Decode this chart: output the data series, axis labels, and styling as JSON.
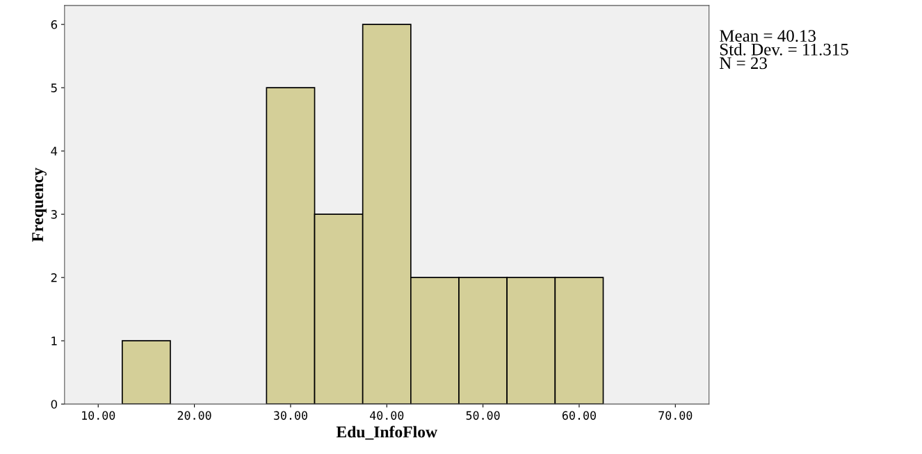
{
  "chart_data": {
    "type": "histogram",
    "xlabel": "Edu_InfoFlow",
    "ylabel": "Frequency",
    "bins": [
      12.5,
      17.5,
      22.5,
      27.5,
      32.5,
      37.5,
      42.5,
      47.5,
      52.5,
      57.5,
      62.5
    ],
    "values": [
      1,
      0,
      0,
      5,
      3,
      6,
      2,
      2,
      2,
      2
    ],
    "color": "#d4cf98",
    "xlim": [
      6.5,
      73.5
    ],
    "xticks": [
      {
        "value": 10,
        "label": "10.00"
      },
      {
        "value": 20,
        "label": "20.00"
      },
      {
        "value": 30,
        "label": "30.00"
      },
      {
        "value": 40,
        "label": "40.00"
      },
      {
        "value": 50,
        "label": "50.00"
      },
      {
        "value": 60,
        "label": "60.00"
      },
      {
        "value": 70,
        "label": "70.00"
      }
    ],
    "ylim": [
      0,
      6.3
    ],
    "yticks": [
      0,
      1,
      2,
      3,
      4,
      5,
      6
    ],
    "grid": false,
    "annotations": [
      "Mean = 40.13",
      "Std. Dev. = 11.315",
      "N = 23"
    ]
  }
}
